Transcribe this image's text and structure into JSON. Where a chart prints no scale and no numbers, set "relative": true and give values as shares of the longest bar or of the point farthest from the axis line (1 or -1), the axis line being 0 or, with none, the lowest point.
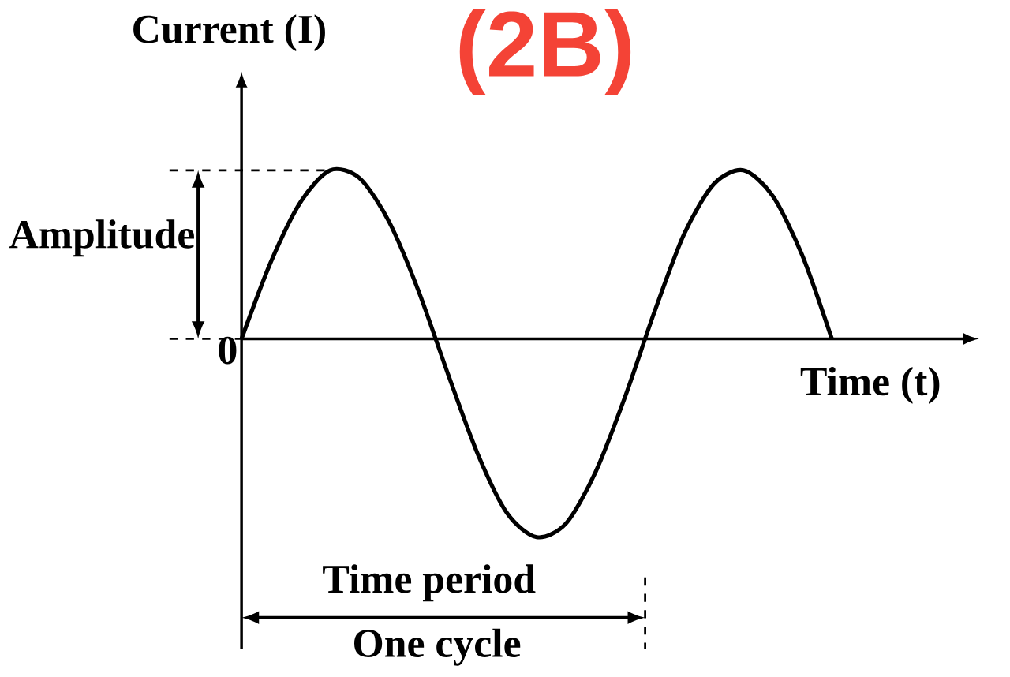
{
  "chart_data": {
    "type": "line",
    "title": "(2B)",
    "xlabel": "Time (t)",
    "ylabel": "Current (I)",
    "categories": [
      null,
      null,
      null,
      null,
      null,
      null,
      null,
      null,
      null,
      null,
      null,
      null,
      null,
      null,
      null,
      null,
      null,
      null,
      null,
      null,
      null
    ],
    "relative": true,
    "series": [
      {
        "color": "#000000",
        "values": [
          0,
          0.39,
          0.69,
          0.85,
          0.81,
          0.59,
          0.24,
          -0.18,
          -0.58,
          -0.88,
          -1.0,
          -0.93,
          -0.67,
          -0.29,
          0.14,
          0.53,
          0.78,
          0.85,
          0.72,
          0.42,
          0
        ]
      }
    ],
    "annotations": [
      "0",
      "Amplitude",
      "Time period",
      "One cycle"
    ]
  }
}
